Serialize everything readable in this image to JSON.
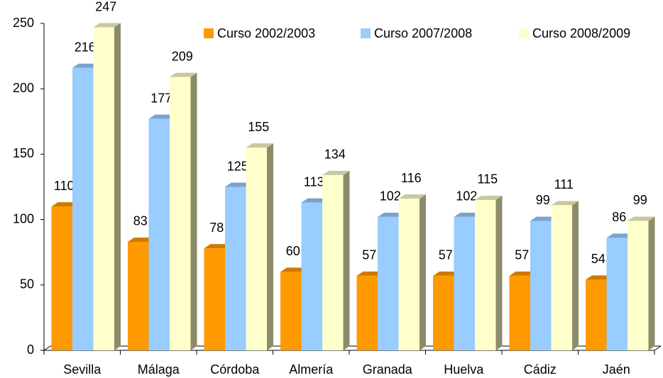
{
  "chart_data": {
    "type": "bar3d",
    "categories": [
      "Sevilla",
      "Málaga",
      "Córdoba",
      "Almería",
      "Granada",
      "Huelva",
      "Cádiz",
      "Jaén"
    ],
    "series": [
      {
        "name": "Curso 2002/2003",
        "color": "#ff9900",
        "values": [
          110,
          83,
          78,
          60,
          57,
          57,
          57,
          54
        ]
      },
      {
        "name": "Curso 2007/2008",
        "color": "#99ccff",
        "values": [
          216,
          177,
          125,
          113,
          102,
          102,
          99,
          86
        ]
      },
      {
        "name": "Curso 2008/2009",
        "color": "#ffffcc",
        "values": [
          247,
          209,
          155,
          134,
          116,
          115,
          111,
          99
        ]
      }
    ],
    "ylim": [
      0,
      250
    ],
    "yticks": [
      0,
      50,
      100,
      150,
      200,
      250
    ],
    "grid": false,
    "legend": "top-right"
  }
}
